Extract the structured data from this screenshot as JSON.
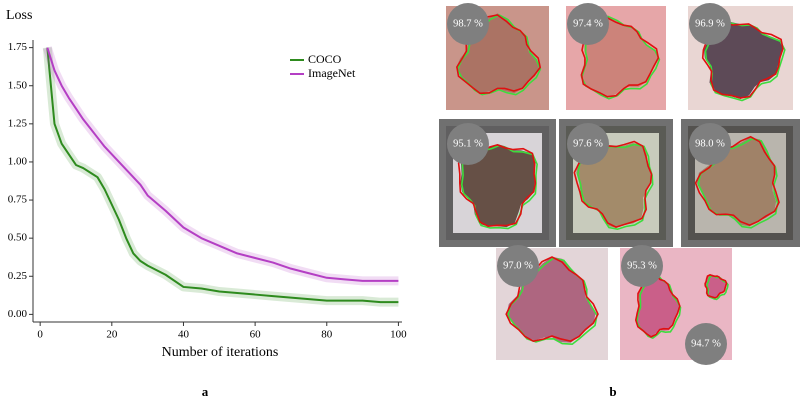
{
  "chart_data": {
    "type": "line",
    "ylabel": "Loss",
    "xlabel": "Number of iterations",
    "panel_label": "a",
    "x": [
      2,
      4,
      6,
      8,
      10,
      12,
      14,
      16,
      18,
      20,
      22,
      24,
      26,
      28,
      30,
      35,
      40,
      45,
      50,
      55,
      60,
      65,
      70,
      75,
      80,
      85,
      90,
      95,
      100
    ],
    "series": [
      {
        "name": "COCO",
        "color": "#2e8b1e",
        "values": [
          1.75,
          1.25,
          1.12,
          1.05,
          0.98,
          0.96,
          0.93,
          0.9,
          0.82,
          0.72,
          0.62,
          0.5,
          0.4,
          0.35,
          0.32,
          0.26,
          0.18,
          0.17,
          0.15,
          0.14,
          0.13,
          0.12,
          0.11,
          0.1,
          0.09,
          0.09,
          0.09,
          0.08,
          0.08
        ]
      },
      {
        "name": "ImageNet",
        "color": "#b43fc4",
        "values": [
          1.75,
          1.6,
          1.5,
          1.42,
          1.35,
          1.28,
          1.22,
          1.16,
          1.1,
          1.05,
          1.0,
          0.95,
          0.9,
          0.85,
          0.78,
          0.68,
          0.57,
          0.5,
          0.45,
          0.4,
          0.37,
          0.34,
          0.3,
          0.27,
          0.24,
          0.23,
          0.22,
          0.22,
          0.22
        ]
      }
    ],
    "xlim": [
      -2,
      101
    ],
    "xticks": [
      0,
      20,
      40,
      60,
      80,
      100
    ],
    "ylim": [
      -0.05,
      1.8
    ],
    "yticks": [
      {
        "value": 0,
        "label": "0.00"
      },
      {
        "value": 0.25,
        "label": "0.25"
      },
      {
        "value": 0.5,
        "label": "0.50"
      },
      {
        "value": 0.75,
        "label": "0.75"
      },
      {
        "value": 1,
        "label": "1.00"
      },
      {
        "value": 1.25,
        "label": "1.25"
      },
      {
        "value": 1.5,
        "label": "1.50"
      },
      {
        "value": 1.75,
        "label": "1.75"
      }
    ],
    "legend": "upper right"
  },
  "panel_b": {
    "label": "b",
    "images": [
      {
        "scores": [
          "98.7 %"
        ]
      },
      {
        "scores": [
          "97.4 %"
        ]
      },
      {
        "scores": [
          "96.9 %"
        ]
      },
      {
        "scores": [
          "95.1 %"
        ]
      },
      {
        "scores": [
          "97.6 %"
        ]
      },
      {
        "scores": [
          "98.0 %"
        ]
      },
      {
        "scores": [
          "97.0 %"
        ]
      },
      {
        "scores": [
          "95.3 %",
          "94.7 %"
        ]
      }
    ]
  }
}
